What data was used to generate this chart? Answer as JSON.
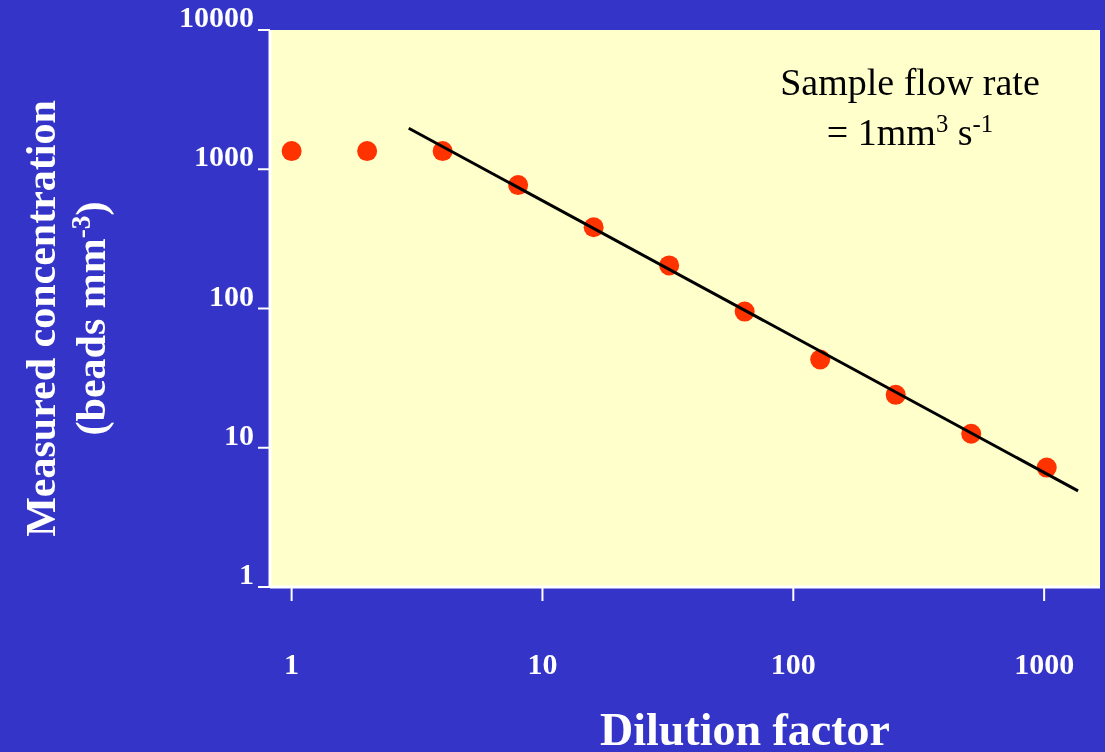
{
  "chart_data": {
    "type": "scatter",
    "xlabel": "Dilution factor",
    "ylabel": "Measured concentration\n(beads mm$^{-3}$)",
    "log": "xy",
    "grid": false,
    "xlim": [
      0.82,
      1670
    ],
    "ylim": [
      1,
      10000
    ],
    "xticks": [
      1,
      10,
      100,
      1000
    ],
    "yticks": [
      1,
      10,
      100,
      1000,
      10000
    ],
    "series": [
      {
        "marker": "circle",
        "color": "#ff3300",
        "x": [
          1,
          2,
          4,
          8,
          16,
          32,
          64,
          128,
          256,
          512,
          1024
        ],
        "values": [
          1350,
          1350,
          1350,
          770,
          383,
          204,
          95,
          43,
          24,
          12.6,
          7.2
        ]
      },
      {
        "type": "line",
        "color": "#000000",
        "x": [
          2.93,
          1365
        ],
        "values": [
          1970,
          4.9
        ]
      }
    ],
    "annotations": [
      {
        "text": "Sample flow rate\n= 1mm$^{3}$ s$^{-1}$"
      }
    ]
  }
}
